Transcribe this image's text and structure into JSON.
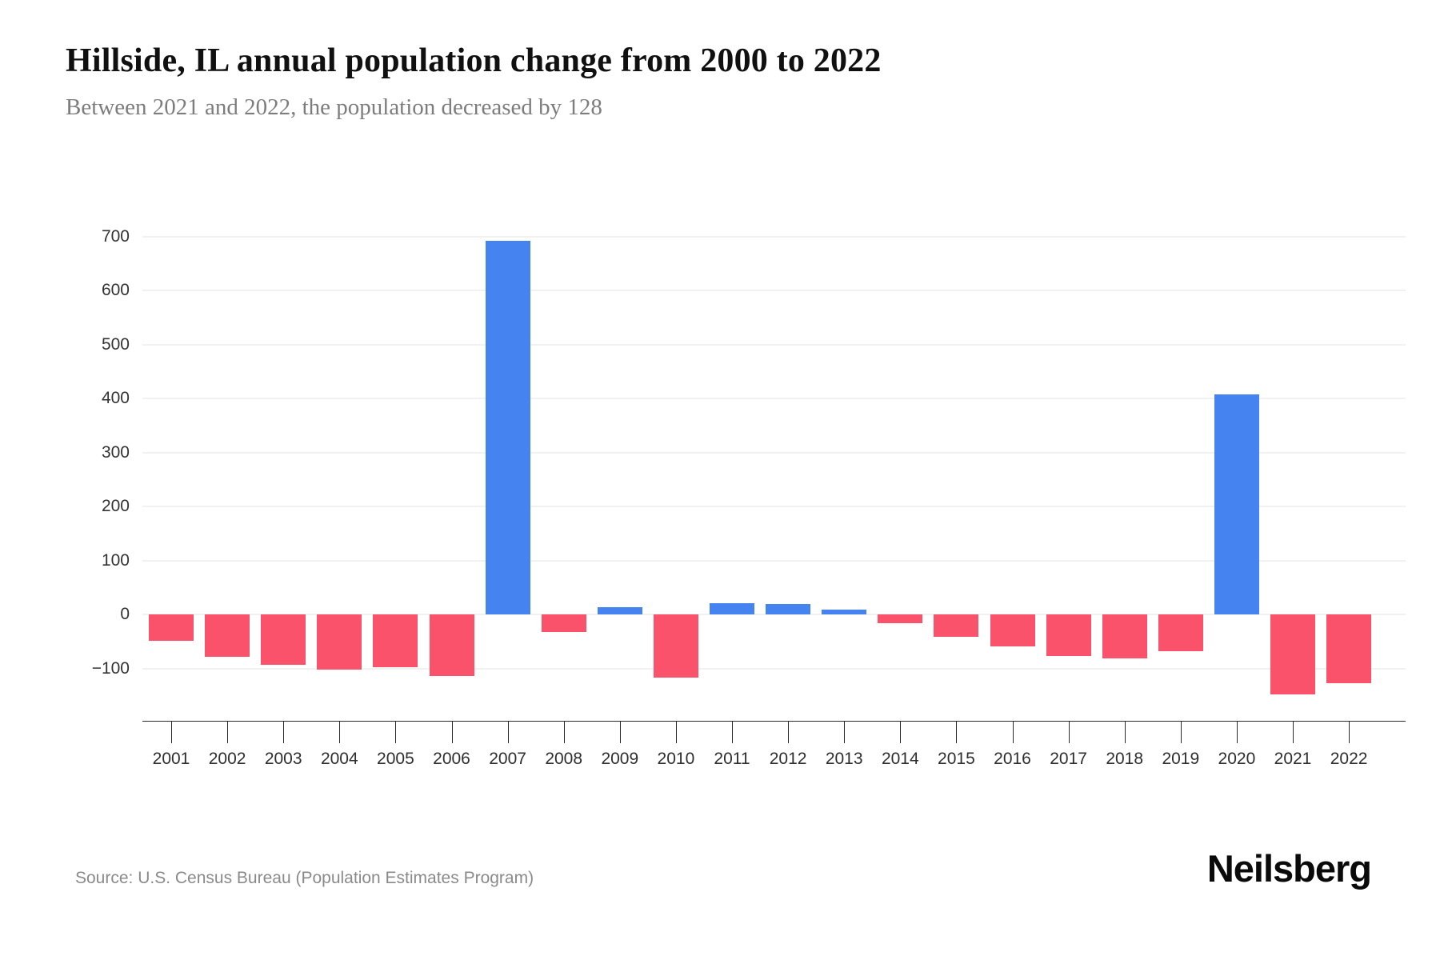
{
  "header": {
    "title": "Hillside, IL annual population change from 2000 to 2022",
    "subtitle": "Between 2021 and 2022, the population decreased by 128"
  },
  "footer": {
    "source": "Source: U.S. Census Bureau (Population Estimates Program)",
    "brand": "Neilsberg"
  },
  "chart_data": {
    "type": "bar",
    "title": "Hillside, IL annual population change from 2000 to 2022",
    "subtitle": "Between 2021 and 2022, the population decreased by 128",
    "categories": [
      "2001",
      "2002",
      "2003",
      "2004",
      "2005",
      "2006",
      "2007",
      "2008",
      "2009",
      "2010",
      "2011",
      "2012",
      "2013",
      "2014",
      "2015",
      "2016",
      "2017",
      "2018",
      "2019",
      "2020",
      "2021",
      "2022"
    ],
    "series": [
      {
        "name": "Annual population change",
        "values": [
          -49,
          -78,
          -93,
          -102,
          -98,
          -114,
          692,
          -33,
          14,
          -117,
          21,
          19,
          9,
          -17,
          -42,
          -59,
          -77,
          -82,
          -68,
          407,
          -148,
          -128
        ]
      }
    ],
    "y_ticks": [
      700,
      600,
      500,
      400,
      300,
      200,
      100,
      0,
      -100
    ],
    "y_tick_labels": [
      "700",
      "600",
      "500",
      "400",
      "300",
      "200",
      "100",
      "0",
      "−100"
    ],
    "ylim": [
      -200,
      700
    ],
    "xlabel": "",
    "ylabel": "",
    "grid": true,
    "legend": false,
    "colors": {
      "positive": "#4584f0",
      "negative": "#fb526b",
      "gridline": "#f1f1f1",
      "axis": "#2b2b2b",
      "tick_label": "#333333"
    }
  }
}
